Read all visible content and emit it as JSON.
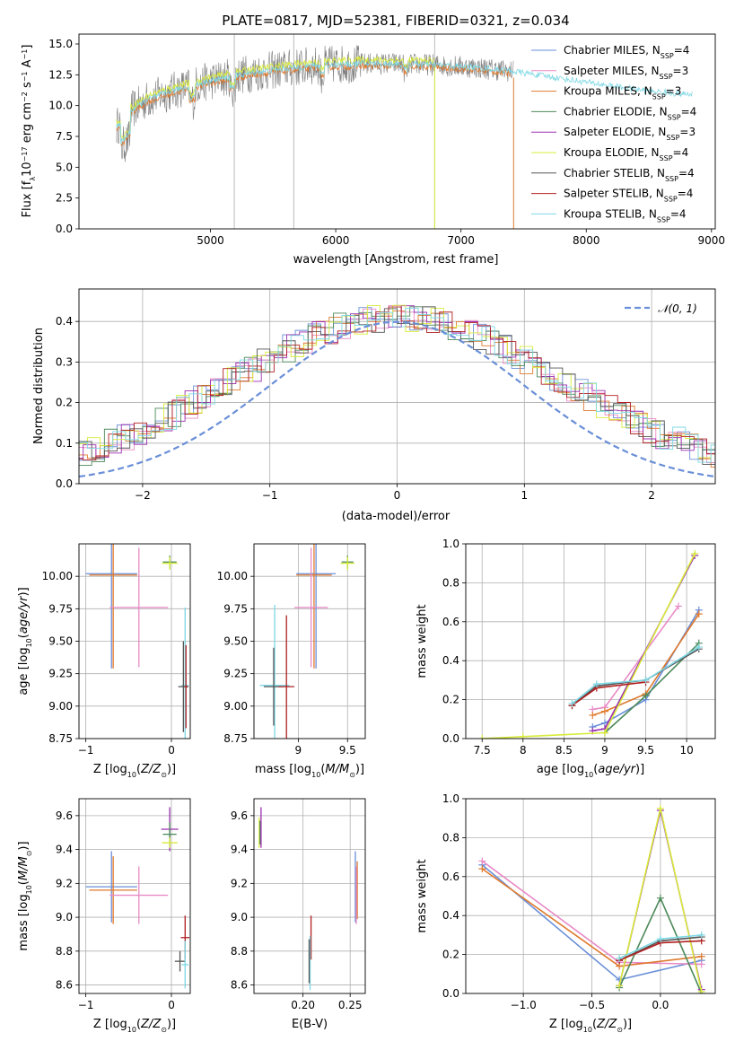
{
  "figure_title": "PLATE=0817, MJD=52381, FIBERID=0321, z=0.034",
  "colors": {
    "Chabrier MILES": "#6a8fd8",
    "Salpeter MILES": "#e88ac6",
    "Kroupa MILES": "#e07a2e",
    "Chabrier ELODIE": "#4d8a5a",
    "Salpeter ELODIE": "#9a2fb0",
    "Kroupa ELODIE": "#d8ec3a",
    "Chabrier STELIB": "#555555",
    "Salpeter STELIB": "#b02020",
    "Kroupa STELIB": "#7dd8e4"
  },
  "chart_data": [
    {
      "id": "spectrum",
      "type": "line",
      "title": "PLATE=0817, MJD=52381, FIBERID=0321, z=0.034",
      "xlabel": "wavelength [Angstrom, rest frame]",
      "ylabel": "Flux [f_λ10^-17 erg cm^-2 s^-1 A^-1]",
      "xlim": [
        3950,
        9030
      ],
      "ylim": [
        0,
        15.8
      ],
      "xticks": [
        5000,
        6000,
        7000,
        8000,
        9000
      ],
      "yticks": [
        0.0,
        2.5,
        5.0,
        7.5,
        10.0,
        12.5,
        15.0
      ],
      "legend_position": "right",
      "legend": [
        "Chabrier MILES, N_SSP=4",
        "Salpeter MILES, N_SSP=3",
        "Kroupa MILES, N_SSP=3",
        "Chabrier ELODIE, N_SSP=4",
        "Salpeter ELODIE, N_SSP=3",
        "Kroupa ELODIE, N_SSP=4",
        "Chabrier STELIB, N_SSP=4",
        "Salpeter STELIB, N_SSP=4",
        "Kroupa STELIB, N_SSP=4"
      ],
      "data_envelope": {
        "x": [
          4250,
          4350,
          4500,
          4700,
          5000,
          5300,
          5600,
          5900,
          6200,
          6500,
          6800,
          7100,
          7400,
          7600,
          7800,
          8000,
          8200,
          8400,
          8600,
          8800
        ],
        "y": [
          8.3,
          9.5,
          10.5,
          11.2,
          12.0,
          12.6,
          13.0,
          13.3,
          13.4,
          13.4,
          13.3,
          13.1,
          12.8,
          12.5,
          12.2,
          11.9,
          11.6,
          11.3,
          11.1,
          10.9
        ]
      }
    },
    {
      "id": "residuals",
      "type": "line",
      "xlabel": "(data-model)/error",
      "ylabel": "Normed distribution",
      "xlim": [
        -2.5,
        2.5
      ],
      "ylim": [
        0,
        0.48
      ],
      "xticks": [
        -2,
        -1,
        0,
        1,
        2
      ],
      "yticks": [
        0.0,
        0.1,
        0.2,
        0.3,
        0.4
      ],
      "legend": [
        "𝒩(0, 1)"
      ],
      "legend_position": "top-right",
      "normal_curve": {
        "mean": 0,
        "sigma": 1,
        "style": "dashed",
        "color": "#6a8fd8"
      },
      "grid": true
    },
    {
      "id": "age_vs_Z",
      "type": "scatter",
      "xlabel": "Z [log10(Z/Z☉)]",
      "ylabel": "age  [log10(age/yr)]",
      "xlim": [
        -1.08,
        0.22
      ],
      "ylim": [
        8.75,
        10.25
      ],
      "xticks": [
        -1,
        0
      ],
      "yticks": [
        8.75,
        9.0,
        9.25,
        9.5,
        9.75,
        10.0
      ],
      "ytick_labels": [
        "8.75",
        "9.00",
        "9.25",
        "9.50",
        "9.75",
        "10.00"
      ],
      "grid": true,
      "points": [
        {
          "model": "Chabrier MILES",
          "x": -0.7,
          "y": 10.02,
          "xerr": 0.3,
          "yerr": 0.73
        },
        {
          "model": "Kroupa MILES",
          "x": -0.68,
          "y": 10.01,
          "xerr": 0.28,
          "yerr": 0.72
        },
        {
          "model": "Salpeter MILES",
          "x": -0.38,
          "y": 9.76,
          "xerr": 0.34,
          "yerr": 0.46
        },
        {
          "model": "Chabrier ELODIE",
          "x": -0.02,
          "y": 10.11,
          "xerr": 0.08,
          "yerr": 0.05
        },
        {
          "model": "Kroupa ELODIE",
          "x": -0.02,
          "y": 10.1,
          "xerr": 0.09,
          "yerr": 0.05
        },
        {
          "model": "Kroupa STELIB",
          "x": 0.16,
          "y": 9.16,
          "xerr": 0.04,
          "yerr": 0.6
        },
        {
          "model": "Chabrier STELIB",
          "x": 0.14,
          "y": 9.15,
          "xerr": 0.06,
          "yerr": 0.35
        },
        {
          "model": "Salpeter STELIB",
          "x": 0.17,
          "y": 9.15,
          "xerr": 0.02,
          "yerr": 0.32
        }
      ]
    },
    {
      "id": "age_vs_mass",
      "type": "scatter",
      "xlabel": "mass [log10(M/M☉)]",
      "ylabel": "",
      "xlim": [
        8.55,
        9.68
      ],
      "ylim": [
        8.75,
        10.25
      ],
      "xticks": [
        9.0,
        9.5
      ],
      "yticks": [
        8.75,
        9.0,
        9.25,
        9.5,
        9.75,
        10.0
      ],
      "ytick_labels": [
        "8.75",
        "9.00",
        "9.25",
        "9.50",
        "9.75",
        "10.00"
      ],
      "grid": true,
      "points": [
        {
          "model": "Chabrier MILES",
          "x": 9.18,
          "y": 10.02,
          "xerr": 0.2,
          "yerr": 0.73
        },
        {
          "model": "Kroupa MILES",
          "x": 9.16,
          "y": 10.01,
          "xerr": 0.18,
          "yerr": 0.72
        },
        {
          "model": "Salpeter MILES",
          "x": 9.13,
          "y": 9.76,
          "xerr": 0.17,
          "yerr": 0.46
        },
        {
          "model": "Chabrier ELODIE",
          "x": 9.5,
          "y": 10.11,
          "xerr": 0.06,
          "yerr": 0.05
        },
        {
          "model": "Kroupa ELODIE",
          "x": 9.5,
          "y": 10.1,
          "xerr": 0.07,
          "yerr": 0.05
        },
        {
          "model": "Kroupa STELIB",
          "x": 8.76,
          "y": 9.16,
          "xerr": 0.15,
          "yerr": 0.62
        },
        {
          "model": "Chabrier STELIB",
          "x": 8.75,
          "y": 9.15,
          "xerr": 0.1,
          "yerr": 0.3
        },
        {
          "model": "Salpeter STELIB",
          "x": 8.88,
          "y": 9.15,
          "xerr": 0.08,
          "yerr": 0.55
        }
      ]
    },
    {
      "id": "massweight_vs_age",
      "type": "line",
      "xlabel": "age  [log10(age/yr)]",
      "ylabel": "mass weight",
      "xlim": [
        7.3,
        10.35
      ],
      "ylim": [
        0,
        1.0
      ],
      "xticks": [
        7.5,
        8.0,
        8.5,
        9.0,
        9.5,
        10.0
      ],
      "yticks": [
        0.0,
        0.2,
        0.4,
        0.6,
        0.8,
        1.0
      ],
      "grid": true,
      "series": [
        {
          "model": "Chabrier MILES",
          "x": [
            8.85,
            9.0,
            9.5,
            10.15
          ],
          "y": [
            0.06,
            0.08,
            0.2,
            0.66
          ]
        },
        {
          "model": "Salpeter MILES",
          "x": [
            8.85,
            9.0,
            9.9
          ],
          "y": [
            0.15,
            0.16,
            0.68
          ]
        },
        {
          "model": "Kroupa MILES",
          "x": [
            8.85,
            9.0,
            9.5,
            10.15
          ],
          "y": [
            0.12,
            0.14,
            0.23,
            0.64
          ]
        },
        {
          "model": "Chabrier ELODIE",
          "x": [
            9.0,
            9.5,
            10.15
          ],
          "y": [
            0.03,
            0.22,
            0.49
          ]
        },
        {
          "model": "Salpeter ELODIE",
          "x": [
            8.85,
            9.0,
            10.1
          ],
          "y": [
            0.04,
            0.05,
            0.94
          ]
        },
        {
          "model": "Kroupa ELODIE",
          "x": [
            7.5,
            8.0,
            9.0,
            10.1
          ],
          "y": [
            0.0,
            0.01,
            0.03,
            0.95
          ]
        },
        {
          "model": "Chabrier STELIB",
          "x": [
            8.6,
            8.9,
            9.5,
            10.15
          ],
          "y": [
            0.17,
            0.27,
            0.3,
            0.46
          ]
        },
        {
          "model": "Salpeter STELIB",
          "x": [
            8.6,
            8.9,
            9.5
          ],
          "y": [
            0.17,
            0.26,
            0.29
          ]
        },
        {
          "model": "Kroupa STELIB",
          "x": [
            8.6,
            8.9,
            9.5,
            10.15
          ],
          "y": [
            0.18,
            0.28,
            0.3,
            0.47
          ]
        }
      ]
    },
    {
      "id": "mass_vs_Z",
      "type": "scatter",
      "xlabel": "Z [log10(Z/Z☉)]",
      "ylabel": "mass [log10(M/M☉)]",
      "xlim": [
        -1.08,
        0.22
      ],
      "ylim": [
        8.55,
        9.7
      ],
      "xticks": [
        -1,
        0
      ],
      "yticks": [
        8.6,
        8.8,
        9.0,
        9.2,
        9.4,
        9.6
      ],
      "ytick_labels": [
        "8.6",
        "8.8",
        "9.0",
        "9.2",
        "9.4",
        "9.6"
      ],
      "grid": true,
      "points": [
        {
          "model": "Chabrier MILES",
          "x": -0.7,
          "y": 9.18,
          "xerr": 0.3,
          "yerr": 0.21
        },
        {
          "model": "Kroupa MILES",
          "x": -0.68,
          "y": 9.16,
          "xerr": 0.28,
          "yerr": 0.2
        },
        {
          "model": "Salpeter MILES",
          "x": -0.38,
          "y": 9.13,
          "xerr": 0.34,
          "yerr": 0.17
        },
        {
          "model": "Salpeter ELODIE",
          "x": -0.02,
          "y": 9.52,
          "xerr": 0.1,
          "yerr": 0.13
        },
        {
          "model": "Chabrier ELODIE",
          "x": -0.02,
          "y": 9.49,
          "xerr": 0.08,
          "yerr": 0.07
        },
        {
          "model": "Kroupa ELODIE",
          "x": -0.02,
          "y": 9.44,
          "xerr": 0.09,
          "yerr": 0.03
        },
        {
          "model": "Salpeter STELIB",
          "x": 0.16,
          "y": 8.88,
          "xerr": 0.05,
          "yerr": 0.13
        },
        {
          "model": "Chabrier STELIB",
          "x": 0.1,
          "y": 8.74,
          "xerr": 0.06,
          "yerr": 0.06
        },
        {
          "model": "Kroupa STELIB",
          "x": 0.16,
          "y": 8.72,
          "xerr": 0.04,
          "yerr": 0.14
        }
      ]
    },
    {
      "id": "mass_vs_EBV",
      "type": "scatter",
      "xlabel": "E(B-V)",
      "ylabel": "",
      "xlim": [
        0.148,
        0.266
      ],
      "ylim": [
        8.55,
        9.7
      ],
      "xticks": [
        0.2,
        0.25
      ],
      "xtick_labels": [
        "0.20",
        "0.25"
      ],
      "yticks": [
        8.6,
        8.8,
        9.0,
        9.2,
        9.4,
        9.6
      ],
      "ytick_labels": [
        "8.6",
        "8.8",
        "9.0",
        "9.2",
        "9.4",
        "9.6"
      ],
      "grid": true,
      "points": [
        {
          "model": "Kroupa ELODIE",
          "x": 0.1535,
          "y": 9.5,
          "xerr": 0,
          "yerr": 0.09
        },
        {
          "model": "Chabrier ELODIE",
          "x": 0.1545,
          "y": 9.5,
          "xerr": 0,
          "yerr": 0.07
        },
        {
          "model": "Salpeter ELODIE",
          "x": 0.1555,
          "y": 9.53,
          "xerr": 0,
          "yerr": 0.12
        },
        {
          "model": "Salpeter STELIB",
          "x": 0.2085,
          "y": 8.88,
          "xerr": 0,
          "yerr": 0.13
        },
        {
          "model": "Kroupa STELIB",
          "x": 0.2075,
          "y": 8.73,
          "xerr": 0,
          "yerr": 0.16
        },
        {
          "model": "Chabrier STELIB",
          "x": 0.2065,
          "y": 8.74,
          "xerr": 0,
          "yerr": 0.13
        },
        {
          "model": "Chabrier MILES",
          "x": 0.2555,
          "y": 9.18,
          "xerr": 0,
          "yerr": 0.21
        },
        {
          "model": "Kroupa MILES",
          "x": 0.2575,
          "y": 9.16,
          "xerr": 0,
          "yerr": 0.17
        },
        {
          "model": "Salpeter MILES",
          "x": 0.2565,
          "y": 9.13,
          "xerr": 0,
          "yerr": 0.17
        }
      ]
    },
    {
      "id": "massweight_vs_Z",
      "type": "line",
      "xlabel": "Z [log10(Z/Z☉)]",
      "ylabel": "mass weight",
      "xlim": [
        -1.42,
        0.4
      ],
      "ylim": [
        0,
        1.0
      ],
      "xticks": [
        -1.0,
        -0.5,
        0.0
      ],
      "xtick_labels": [
        "−1.0",
        "−0.5",
        "0.0"
      ],
      "yticks": [
        0.0,
        0.2,
        0.4,
        0.6,
        0.8,
        1.0
      ],
      "grid": true,
      "series": [
        {
          "model": "Chabrier MILES",
          "x": [
            -1.3,
            -0.3,
            0.3
          ],
          "y": [
            0.66,
            0.07,
            0.17
          ]
        },
        {
          "model": "Salpeter MILES",
          "x": [
            -1.3,
            -0.3,
            0.3
          ],
          "y": [
            0.68,
            0.16,
            0.15
          ]
        },
        {
          "model": "Kroupa MILES",
          "x": [
            -1.3,
            -0.3,
            0.3
          ],
          "y": [
            0.64,
            0.14,
            0.19
          ]
        },
        {
          "model": "Chabrier ELODIE",
          "x": [
            -0.3,
            0.0,
            0.3
          ],
          "y": [
            0.03,
            0.49,
            0.0
          ]
        },
        {
          "model": "Salpeter ELODIE",
          "x": [
            -0.3,
            0.0,
            0.3
          ],
          "y": [
            0.04,
            0.94,
            0.02
          ]
        },
        {
          "model": "Kroupa ELODIE",
          "x": [
            -0.3,
            0.0,
            0.3
          ],
          "y": [
            0.04,
            0.95,
            0.01
          ]
        },
        {
          "model": "Chabrier STELIB",
          "x": [
            -0.3,
            0.0,
            0.3
          ],
          "y": [
            0.17,
            0.27,
            0.29
          ]
        },
        {
          "model": "Salpeter STELIB",
          "x": [
            -0.3,
            0.0,
            0.3
          ],
          "y": [
            0.17,
            0.26,
            0.27
          ]
        },
        {
          "model": "Kroupa STELIB",
          "x": [
            -0.3,
            0.0,
            0.3
          ],
          "y": [
            0.18,
            0.28,
            0.3
          ]
        }
      ]
    }
  ]
}
